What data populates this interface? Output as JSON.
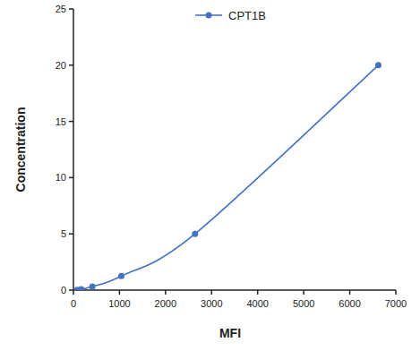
{
  "chart_data": {
    "type": "line",
    "x_label": "MFI",
    "y_label": "Concentration",
    "x": [
      80,
      170,
      410,
      1040,
      2640,
      6620
    ],
    "series": [
      {
        "name": "CPT1B",
        "color": "#4472c4",
        "marker": "circle",
        "values": [
          0.0195,
          0.078,
          0.3125,
          1.25,
          5,
          20
        ]
      }
    ],
    "xlim": [
      0,
      7000
    ],
    "xticks": [
      0,
      1000,
      2000,
      3000,
      4000,
      5000,
      6000,
      7000
    ],
    "ylim": [
      0,
      25
    ],
    "yticks": [
      0,
      5,
      10,
      15,
      20,
      25
    ],
    "grid": false,
    "legend": "top"
  }
}
